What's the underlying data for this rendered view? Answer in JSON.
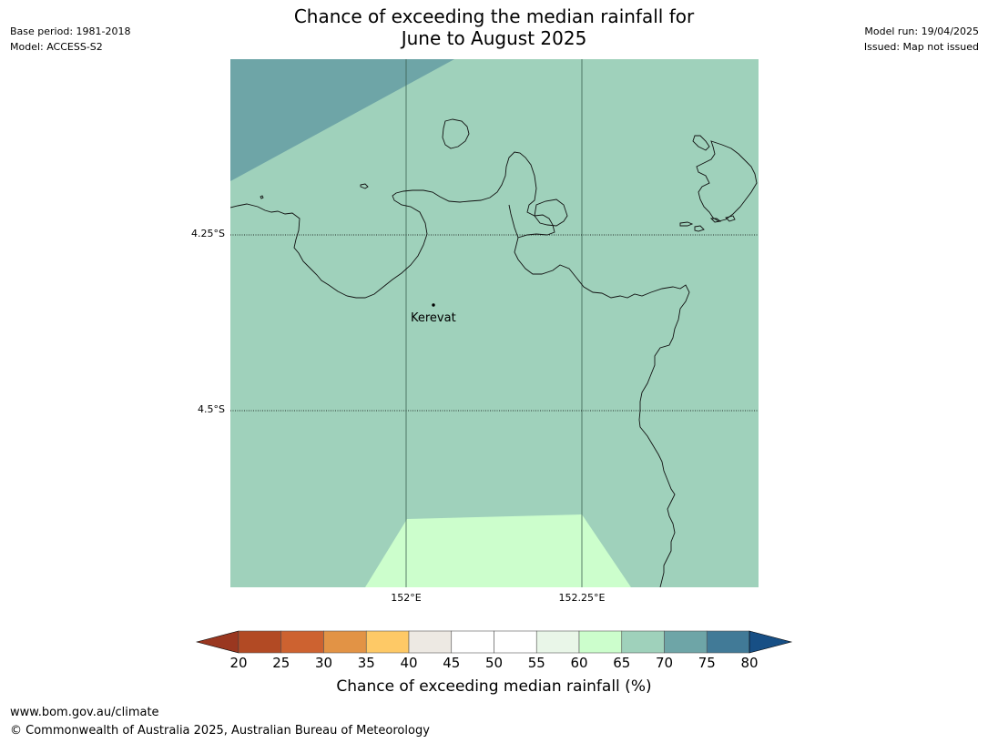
{
  "header": {
    "base_period": "Base period: 1981-2018",
    "model": "Model: ACCESS-S2",
    "title_line1": "Chance of exceeding the median rainfall for",
    "title_line2": "June to August 2025",
    "model_run": "Model run: 19/04/2025",
    "issued": "Issued: Map not issued"
  },
  "map": {
    "lat_labels": [
      "4.25°S",
      "4.5°S"
    ],
    "lon_labels": [
      "152°E",
      "152.25°E"
    ],
    "places": [
      {
        "name": "Kerevat"
      }
    ],
    "region_categories": [
      "70-75",
      "65-70",
      "60-65"
    ]
  },
  "colorbar": {
    "title": "Chance of exceeding median rainfall (%)",
    "ticks": [
      "20",
      "25",
      "30",
      "35",
      "40",
      "45",
      "50",
      "55",
      "60",
      "65",
      "70",
      "75",
      "80"
    ],
    "under_color": "#9a3720",
    "over_color": "#174f85",
    "colors": [
      "#b24a24",
      "#cd6230",
      "#e29345",
      "#fec966",
      "#ede9e3",
      "#ffffff",
      "#ffffff",
      "#e9f6e8",
      "#ccfecc",
      "#9fd1bb",
      "#6ea5a7",
      "#417a97"
    ]
  },
  "footer": {
    "website": "www.bom.gov.au/climate",
    "copyright": "© Commonwealth of Australia 2025, Australian Bureau of Meteorology"
  }
}
